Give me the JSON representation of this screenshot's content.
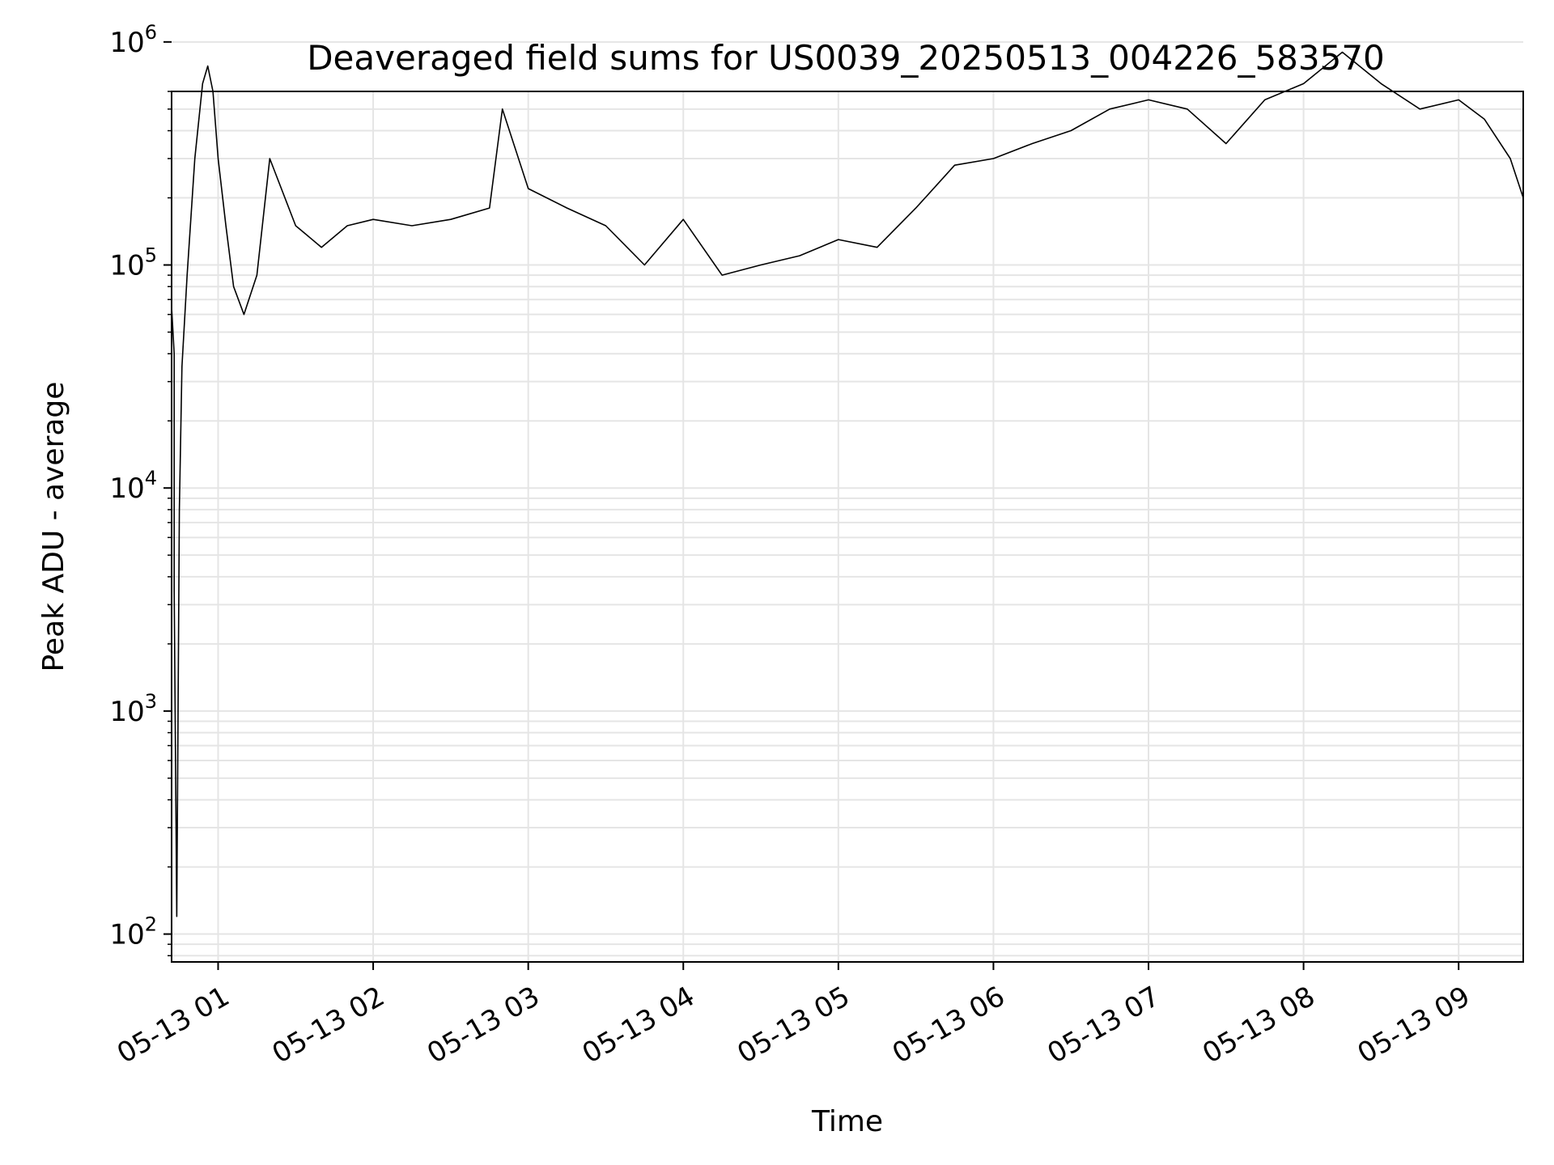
{
  "chart_data": {
    "type": "line",
    "title": "Deaveraged field sums for US0039_20250513_004226_583570",
    "xlabel": "Time",
    "ylabel": "Peak ADU - average",
    "yscale": "log",
    "ylim": [
      75,
      600000
    ],
    "xlim": [
      "2025-05-13 00:42",
      "2025-05-13 09:25"
    ],
    "grid": "major and minor",
    "line_color": "#000000",
    "grid_color": "#e5e5e5",
    "x_ticks": [
      {
        "value": "2025-05-13 01:00",
        "label": "05-13 01"
      },
      {
        "value": "2025-05-13 02:00",
        "label": "05-13 02"
      },
      {
        "value": "2025-05-13 03:00",
        "label": "05-13 03"
      },
      {
        "value": "2025-05-13 04:00",
        "label": "05-13 04"
      },
      {
        "value": "2025-05-13 05:00",
        "label": "05-13 05"
      },
      {
        "value": "2025-05-13 06:00",
        "label": "05-13 06"
      },
      {
        "value": "2025-05-13 07:00",
        "label": "05-13 07"
      },
      {
        "value": "2025-05-13 08:00",
        "label": "05-13 08"
      },
      {
        "value": "2025-05-13 09:00",
        "label": "05-13 09"
      }
    ],
    "y_ticks": [
      {
        "value": 100,
        "base": "10",
        "exp": "2"
      },
      {
        "value": 1000,
        "base": "10",
        "exp": "3"
      },
      {
        "value": 10000,
        "base": "10",
        "exp": "4"
      },
      {
        "value": 100000,
        "base": "10",
        "exp": "5"
      },
      {
        "value": 1000000,
        "base": "10",
        "exp": "6"
      }
    ],
    "series": [
      {
        "values": [
          [
            "2025-05-13 00:42",
            65000
          ],
          [
            "2025-05-13 00:43",
            40000
          ],
          [
            "2025-05-13 00:43",
            3500
          ],
          [
            "2025-05-13 00:44",
            120
          ],
          [
            "2025-05-13 00:45",
            8000
          ],
          [
            "2025-05-13 00:46",
            35000
          ],
          [
            "2025-05-13 00:48",
            90000
          ],
          [
            "2025-05-13 00:51",
            300000
          ],
          [
            "2025-05-13 00:54",
            650000
          ],
          [
            "2025-05-13 00:56",
            780000
          ],
          [
            "2025-05-13 00:58",
            600000
          ],
          [
            "2025-05-13 01:00",
            300000
          ],
          [
            "2025-05-13 01:03",
            150000
          ],
          [
            "2025-05-13 01:06",
            80000
          ],
          [
            "2025-05-13 01:10",
            60000
          ],
          [
            "2025-05-13 01:15",
            90000
          ],
          [
            "2025-05-13 01:20",
            300000
          ],
          [
            "2025-05-13 01:30",
            150000
          ],
          [
            "2025-05-13 01:40",
            120000
          ],
          [
            "2025-05-13 01:50",
            150000
          ],
          [
            "2025-05-13 02:00",
            160000
          ],
          [
            "2025-05-13 02:15",
            150000
          ],
          [
            "2025-05-13 02:30",
            160000
          ],
          [
            "2025-05-13 02:45",
            180000
          ],
          [
            "2025-05-13 02:50",
            500000
          ],
          [
            "2025-05-13 03:00",
            220000
          ],
          [
            "2025-05-13 03:15",
            180000
          ],
          [
            "2025-05-13 03:30",
            150000
          ],
          [
            "2025-05-13 03:45",
            100000
          ],
          [
            "2025-05-13 04:00",
            160000
          ],
          [
            "2025-05-13 04:15",
            90000
          ],
          [
            "2025-05-13 04:30",
            100000
          ],
          [
            "2025-05-13 04:45",
            110000
          ],
          [
            "2025-05-13 05:00",
            130000
          ],
          [
            "2025-05-13 05:15",
            120000
          ],
          [
            "2025-05-13 05:30",
            180000
          ],
          [
            "2025-05-13 05:45",
            280000
          ],
          [
            "2025-05-13 06:00",
            300000
          ],
          [
            "2025-05-13 06:15",
            350000
          ],
          [
            "2025-05-13 06:30",
            400000
          ],
          [
            "2025-05-13 06:45",
            500000
          ],
          [
            "2025-05-13 07:00",
            550000
          ],
          [
            "2025-05-13 07:15",
            500000
          ],
          [
            "2025-05-13 07:30",
            350000
          ],
          [
            "2025-05-13 07:45",
            550000
          ],
          [
            "2025-05-13 08:00",
            650000
          ],
          [
            "2025-05-13 08:15",
            900000
          ],
          [
            "2025-05-13 08:30",
            650000
          ],
          [
            "2025-05-13 08:45",
            500000
          ],
          [
            "2025-05-13 09:00",
            550000
          ],
          [
            "2025-05-13 09:10",
            450000
          ],
          [
            "2025-05-13 09:20",
            300000
          ],
          [
            "2025-05-13 09:25",
            200000
          ]
        ]
      }
    ]
  }
}
